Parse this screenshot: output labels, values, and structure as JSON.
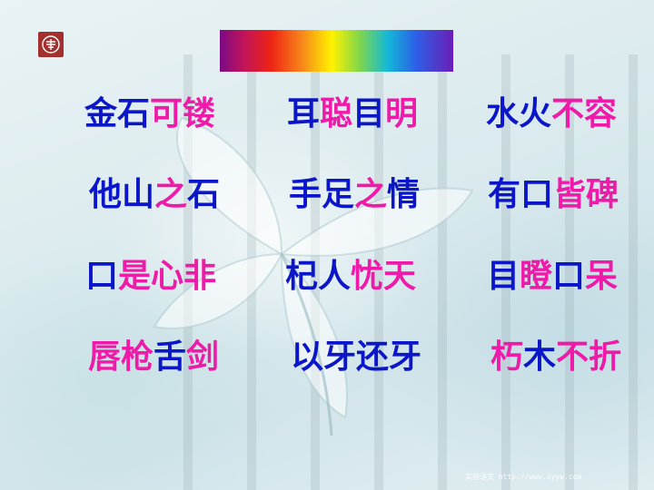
{
  "colors": {
    "blue": "#0b16c8",
    "pink": "#ee1aa8"
  },
  "idioms": [
    [
      [
        {
          "t": "金石",
          "c": "blue"
        },
        {
          "t": "可镂",
          "c": "pink"
        }
      ],
      [
        {
          "t": "耳",
          "c": "blue"
        },
        {
          "t": "聪",
          "c": "pink"
        },
        {
          "t": "目",
          "c": "blue"
        },
        {
          "t": "明",
          "c": "pink"
        }
      ],
      [
        {
          "t": "水火",
          "c": "blue"
        },
        {
          "t": "不容",
          "c": "pink"
        }
      ]
    ],
    [
      [
        {
          "t": "他山",
          "c": "blue"
        },
        {
          "t": "之",
          "c": "pink"
        },
        {
          "t": "石",
          "c": "blue"
        }
      ],
      [
        {
          "t": "手足",
          "c": "blue"
        },
        {
          "t": "之",
          "c": "pink"
        },
        {
          "t": "情",
          "c": "blue"
        }
      ],
      [
        {
          "t": "有口",
          "c": "blue"
        },
        {
          "t": "皆碑",
          "c": "pink"
        }
      ]
    ],
    [
      [
        {
          "t": "口",
          "c": "blue"
        },
        {
          "t": "是心非",
          "c": "pink"
        }
      ],
      [
        {
          "t": "杞人",
          "c": "blue"
        },
        {
          "t": "忧天",
          "c": "pink"
        }
      ],
      [
        {
          "t": "目",
          "c": "blue"
        },
        {
          "t": "瞪",
          "c": "pink"
        },
        {
          "t": "口",
          "c": "blue"
        },
        {
          "t": "呆",
          "c": "pink"
        }
      ]
    ],
    [
      [
        {
          "t": "唇枪",
          "c": "pink"
        },
        {
          "t": "舌",
          "c": "blue"
        },
        {
          "t": "剑",
          "c": "pink"
        }
      ],
      [
        {
          "t": "以牙还牙",
          "c": "blue"
        }
      ],
      [
        {
          "t": "朽",
          "c": "pink"
        },
        {
          "t": "木",
          "c": "blue"
        },
        {
          "t": "不折",
          "c": "pink"
        }
      ]
    ]
  ],
  "footer_text": "实验语文 http://www.syyw.com"
}
